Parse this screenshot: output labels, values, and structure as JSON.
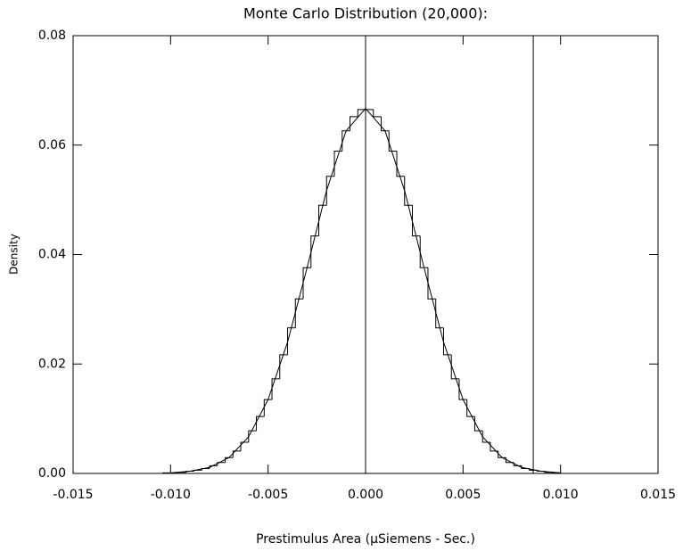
{
  "chart_data": {
    "type": "histogram",
    "title": "Monte Carlo Distribution (20,000):",
    "xlabel": "Prestimulus Area (μSiemens - Sec.)",
    "ylabel": "Density",
    "bins": [
      -0.0104,
      -0.01,
      -0.0096,
      -0.0092,
      -0.0088,
      -0.0084,
      -0.008,
      -0.0076,
      -0.0072,
      -0.0068,
      -0.0064,
      -0.006,
      -0.0056,
      -0.0052,
      -0.0048,
      -0.0044,
      -0.004,
      -0.0036,
      -0.0032,
      -0.0028,
      -0.0024,
      -0.002,
      -0.0016,
      -0.0012,
      -0.0008,
      -0.0004,
      0,
      0.0004,
      0.0008,
      0.0012,
      0.0016,
      0.002,
      0.0024,
      0.0028,
      0.0032,
      0.0036,
      0.004,
      0.0044,
      0.0048,
      0.0052,
      0.0056,
      0.006,
      0.0064,
      0.0068,
      0.0072,
      0.0076,
      0.008,
      0.0084,
      0.0088,
      0.0092,
      0.0096,
      0.01
    ],
    "values": [
      0.0001,
      0.0001,
      0.0002,
      0.0004,
      0.0006,
      0.0009,
      0.0014,
      0.002,
      0.0029,
      0.0041,
      0.0057,
      0.0078,
      0.0104,
      0.0135,
      0.0173,
      0.0217,
      0.0266,
      0.0319,
      0.0376,
      0.0434,
      0.049,
      0.0543,
      0.0589,
      0.0626,
      0.0652,
      0.0665,
      0.0665,
      0.0652,
      0.0626,
      0.0589,
      0.0543,
      0.049,
      0.0434,
      0.0376,
      0.0319,
      0.0266,
      0.0217,
      0.0173,
      0.0135,
      0.0104,
      0.0078,
      0.0057,
      0.0041,
      0.0029,
      0.002,
      0.0014,
      0.0009,
      0.0006,
      0.0004,
      0.0002,
      0.0001
    ],
    "curve": {
      "x": [
        -0.01,
        -0.009,
        -0.008,
        -0.007,
        -0.006,
        -0.005,
        -0.004,
        -0.003,
        -0.002,
        -0.001,
        0,
        0.001,
        0.002,
        0.003,
        0.004,
        0.005,
        0.006,
        0.007,
        0.008,
        0.009,
        0.01
      ],
      "values": [
        0.0001,
        0.0004,
        0.0011,
        0.0029,
        0.0067,
        0.0135,
        0.024,
        0.0376,
        0.0517,
        0.0626,
        0.0667,
        0.0626,
        0.0517,
        0.0376,
        0.024,
        0.0135,
        0.0067,
        0.0029,
        0.0011,
        0.0004,
        0.0001
      ]
    },
    "vlines": [
      0,
      0.0086
    ],
    "color": "#000000",
    "xlim": [
      -0.015,
      0.015
    ],
    "xticks": [
      -0.015,
      {
        "value": -0.01,
        "label": "-0.010"
      },
      -0.005,
      {
        "value": 0,
        "label": "0.000"
      },
      0.005,
      {
        "value": 0.01,
        "label": "0.010"
      },
      0.015
    ],
    "ylim": [
      0,
      0.08
    ],
    "yticks": [
      {
        "value": 0,
        "label": "0.00"
      },
      {
        "value": 0.02,
        "label": "0.02"
      },
      {
        "value": 0.04,
        "label": "0.04"
      },
      {
        "value": 0.06,
        "label": "0.06"
      },
      {
        "value": 0.08,
        "label": "0.08"
      }
    ]
  }
}
